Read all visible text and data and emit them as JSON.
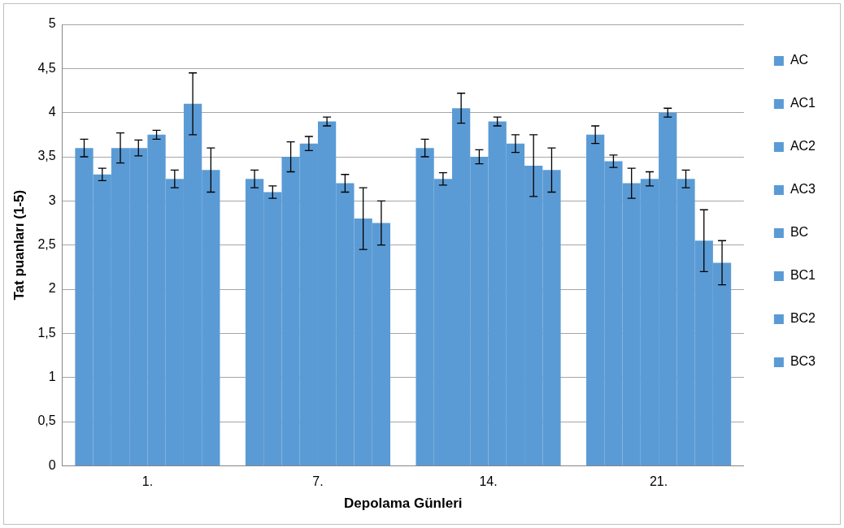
{
  "chart_data": {
    "type": "bar",
    "xlabel": "Depolama Günleri",
    "ylabel": "Tat puanları (1-5)",
    "categories": [
      "1.",
      "7.",
      "14.",
      "21."
    ],
    "ylim": [
      0,
      5
    ],
    "yticks": [
      0,
      {
        "value": 0.5,
        "label": "0,5"
      },
      1,
      {
        "value": 1.5,
        "label": "1,5"
      },
      2,
      {
        "value": 2.5,
        "label": "2,5"
      },
      3,
      {
        "value": 3.5,
        "label": "3,5"
      },
      4,
      {
        "value": 4.5,
        "label": "4,5"
      },
      5
    ],
    "grid": "y",
    "legend": "right",
    "series": [
      {
        "name": "AC",
        "color": "#5b9bd5",
        "values": [
          3.6,
          3.25,
          3.6,
          3.75
        ],
        "errors": [
          0.1,
          0.1,
          0.1,
          0.1
        ]
      },
      {
        "name": "AC1",
        "color": "#5b9bd5",
        "values": [
          3.3,
          3.1,
          3.25,
          3.45
        ],
        "errors": [
          0.07,
          0.07,
          0.07,
          0.07
        ]
      },
      {
        "name": "AC2",
        "color": "#5b9bd5",
        "values": [
          3.6,
          3.5,
          4.05,
          3.2
        ],
        "errors": [
          0.17,
          0.17,
          0.17,
          0.17
        ]
      },
      {
        "name": "AC3",
        "color": "#5b9bd5",
        "values": [
          3.6,
          3.65,
          3.5,
          3.25
        ],
        "errors": [
          0.09,
          0.08,
          0.08,
          0.08
        ]
      },
      {
        "name": "BC",
        "color": "#5b9bd5",
        "values": [
          3.75,
          3.9,
          3.9,
          4.0
        ],
        "errors": [
          0.05,
          0.05,
          0.05,
          0.05
        ]
      },
      {
        "name": "BC1",
        "color": "#5b9bd5",
        "values": [
          3.25,
          3.2,
          3.65,
          3.25
        ],
        "errors": [
          0.1,
          0.1,
          0.1,
          0.1
        ]
      },
      {
        "name": "BC2",
        "color": "#5b9bd5",
        "values": [
          4.1,
          2.8,
          3.4,
          2.55
        ],
        "errors": [
          0.35,
          0.35,
          0.35,
          0.35
        ]
      },
      {
        "name": "BC3",
        "color": "#5b9bd5",
        "values": [
          3.35,
          2.75,
          3.35,
          2.3
        ],
        "errors": [
          0.25,
          0.25,
          0.25,
          0.25
        ]
      }
    ]
  }
}
